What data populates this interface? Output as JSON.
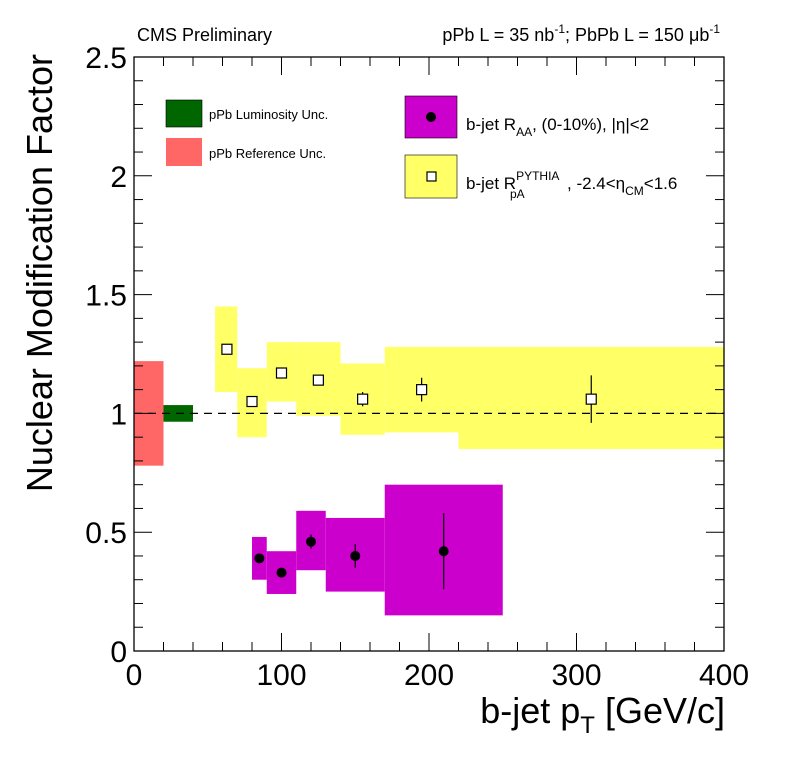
{
  "chart_data": {
    "type": "scatter",
    "header": {
      "left": "CMS Preliminary",
      "right": {
        "pPb_label": "pPb L = 35 nb",
        "pPb_sup": "-1",
        "sep": "; PbPb L = 150 ",
        "mu": "μ",
        "b": "b",
        "PbPb_sup": "-1"
      }
    },
    "xlabel": {
      "main": "b-jet p",
      "sub": "T",
      "unit": " [GeV/c]"
    },
    "ylabel": "Nuclear Modification Factor",
    "xlim": [
      0,
      400
    ],
    "ylim": [
      0,
      2.5
    ],
    "xticks": [
      0,
      100,
      200,
      300,
      400
    ],
    "yticks": [
      0,
      0.5,
      1,
      1.5,
      2,
      2.5
    ],
    "ytick_labels": [
      "0",
      "0.5",
      "1",
      "1.5",
      "2",
      "2.5"
    ],
    "reference_line": 1,
    "colors": {
      "raa_box": "#cc00cc",
      "rpa_box": "#ffff66",
      "lumi_box": "#006600",
      "ref_box": "#ff6666",
      "marker": "#000000"
    },
    "series": [
      {
        "name": "b-jet RAA (0-10%), |eta|<2",
        "legend": {
          "main": "b-jet R",
          "sub": "AA",
          "rest": ", (0-10%), |η|<2"
        },
        "marker": "filled-circle",
        "points": [
          {
            "x": 85,
            "y": 0.39,
            "xlow": 80,
            "xhigh": 90,
            "syslow": 0.3,
            "syshigh": 0.48,
            "err": 0.02
          },
          {
            "x": 100,
            "y": 0.33,
            "xlow": 90,
            "xhigh": 110,
            "syslow": 0.24,
            "syshigh": 0.42,
            "err": 0.02
          },
          {
            "x": 120,
            "y": 0.46,
            "xlow": 110,
            "xhigh": 130,
            "syslow": 0.34,
            "syshigh": 0.59,
            "err": 0.03
          },
          {
            "x": 150,
            "y": 0.4,
            "xlow": 130,
            "xhigh": 170,
            "syslow": 0.25,
            "syshigh": 0.56,
            "err": 0.05
          },
          {
            "x": 210,
            "y": 0.42,
            "xlow": 170,
            "xhigh": 250,
            "syslow": 0.15,
            "syshigh": 0.7,
            "err": 0.16
          }
        ]
      },
      {
        "name": "b-jet RpA PYTHIA, -2.4<eta_CM<1.6",
        "legend": {
          "main": "b-jet R",
          "sup": "PYTHIA",
          "sub": "pA",
          "rest1": ", -2.4<η",
          "sub2": "CM",
          "rest2": "<1.6"
        },
        "marker": "open-square",
        "points": [
          {
            "x": 63,
            "y": 1.27,
            "xlow": 55,
            "xhigh": 70,
            "syslow": 1.09,
            "syshigh": 1.45,
            "err": 0.02
          },
          {
            "x": 80,
            "y": 1.05,
            "xlow": 70,
            "xhigh": 90,
            "syslow": 0.9,
            "syshigh": 1.19,
            "err": 0.015
          },
          {
            "x": 100,
            "y": 1.17,
            "xlow": 90,
            "xhigh": 110,
            "syslow": 1.05,
            "syshigh": 1.3,
            "err": 0.02
          },
          {
            "x": 125,
            "y": 1.14,
            "xlow": 110,
            "xhigh": 140,
            "syslow": 0.99,
            "syshigh": 1.3,
            "err": 0.02
          },
          {
            "x": 155,
            "y": 1.06,
            "xlow": 140,
            "xhigh": 170,
            "syslow": 0.91,
            "syshigh": 1.21,
            "err": 0.03
          },
          {
            "x": 195,
            "y": 1.1,
            "xlow": 170,
            "xhigh": 220,
            "syslow": 0.92,
            "syshigh": 1.28,
            "err": 0.05
          },
          {
            "x": 310,
            "y": 1.06,
            "xlow": 220,
            "xhigh": 400,
            "syslow": 0.85,
            "syshigh": 1.28,
            "err": 0.1
          }
        ]
      }
    ],
    "uncertainty_boxes": [
      {
        "name": "pPb Reference Unc.",
        "xlow": 0,
        "xhigh": 20,
        "ylow": 0.78,
        "yhigh": 1.22,
        "color": "#ff6666"
      },
      {
        "name": "pPb Luminosity Unc.",
        "xlow": 20,
        "xhigh": 40,
        "ylow": 0.965,
        "yhigh": 1.035,
        "color": "#006600"
      }
    ],
    "legend_left": [
      {
        "label": "pPb Luminosity Unc.",
        "color": "#006600"
      },
      {
        "label": "pPb Reference Unc.",
        "color": "#ff6666"
      }
    ]
  }
}
